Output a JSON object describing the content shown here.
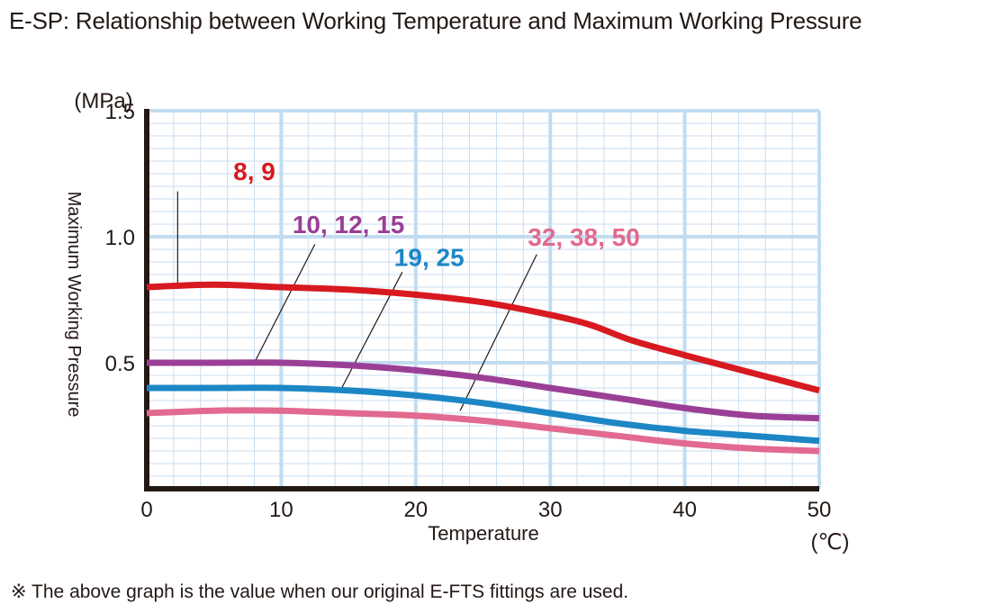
{
  "title": "E-SP: Relationship between Working Temperature and Maximum Working Pressure",
  "footnote": "※ The above graph is the value when our original E-FTS fittings are used.",
  "chart_data": {
    "type": "line",
    "xlabel": "Temperature",
    "ylabel": "Maximum Working Pressure",
    "x_unit": "(℃)",
    "y_unit": "(MPa)",
    "xlim": [
      0,
      50
    ],
    "ylim": [
      0,
      1.5
    ],
    "x_ticks": [
      "0",
      "10",
      "20",
      "30",
      "40",
      "50"
    ],
    "y_ticks": [
      "0.5",
      "1.0",
      "1.5"
    ],
    "grid": true,
    "series": [
      {
        "name": "8, 9",
        "color": "#d71920",
        "label_at": [
          8,
          1.26
        ],
        "leader": {
          "from": [
            2.3,
            1.18
          ],
          "to": [
            2.3,
            0.81
          ]
        },
        "points": [
          [
            0,
            0.8
          ],
          [
            5,
            0.81
          ],
          [
            10,
            0.8
          ],
          [
            15,
            0.79
          ],
          [
            20,
            0.77
          ],
          [
            25,
            0.74
          ],
          [
            30,
            0.69
          ],
          [
            33,
            0.65
          ],
          [
            36,
            0.59
          ],
          [
            40,
            0.53
          ],
          [
            45,
            0.46
          ],
          [
            50,
            0.39
          ]
        ]
      },
      {
        "name": "10, 12, 15",
        "color": "#9b3f96",
        "label_at": [
          15,
          1.05
        ],
        "leader": {
          "from": [
            12.5,
            0.97
          ],
          "to": [
            8,
            0.5
          ]
        },
        "points": [
          [
            0,
            0.5
          ],
          [
            5,
            0.5
          ],
          [
            10,
            0.5
          ],
          [
            15,
            0.49
          ],
          [
            20,
            0.47
          ],
          [
            25,
            0.44
          ],
          [
            30,
            0.4
          ],
          [
            35,
            0.36
          ],
          [
            40,
            0.32
          ],
          [
            45,
            0.29
          ],
          [
            50,
            0.28
          ]
        ]
      },
      {
        "name": "19, 25",
        "color": "#1d86c5",
        "label_at": [
          21,
          0.92
        ],
        "leader": {
          "from": [
            19.0,
            0.86
          ],
          "to": [
            14.5,
            0.4
          ]
        },
        "points": [
          [
            0,
            0.4
          ],
          [
            5,
            0.4
          ],
          [
            10,
            0.4
          ],
          [
            15,
            0.39
          ],
          [
            20,
            0.37
          ],
          [
            25,
            0.34
          ],
          [
            30,
            0.3
          ],
          [
            35,
            0.26
          ],
          [
            40,
            0.23
          ],
          [
            45,
            0.21
          ],
          [
            50,
            0.19
          ]
        ]
      },
      {
        "name": "32, 38, 50",
        "color": "#e2698f",
        "label_at": [
          32.5,
          1.0
        ],
        "leader": {
          "from": [
            29.0,
            0.93
          ],
          "to": [
            23.3,
            0.31
          ]
        },
        "points": [
          [
            0,
            0.3
          ],
          [
            5,
            0.31
          ],
          [
            10,
            0.31
          ],
          [
            15,
            0.3
          ],
          [
            20,
            0.29
          ],
          [
            25,
            0.27
          ],
          [
            30,
            0.24
          ],
          [
            35,
            0.21
          ],
          [
            40,
            0.18
          ],
          [
            45,
            0.16
          ],
          [
            50,
            0.15
          ]
        ]
      }
    ]
  }
}
